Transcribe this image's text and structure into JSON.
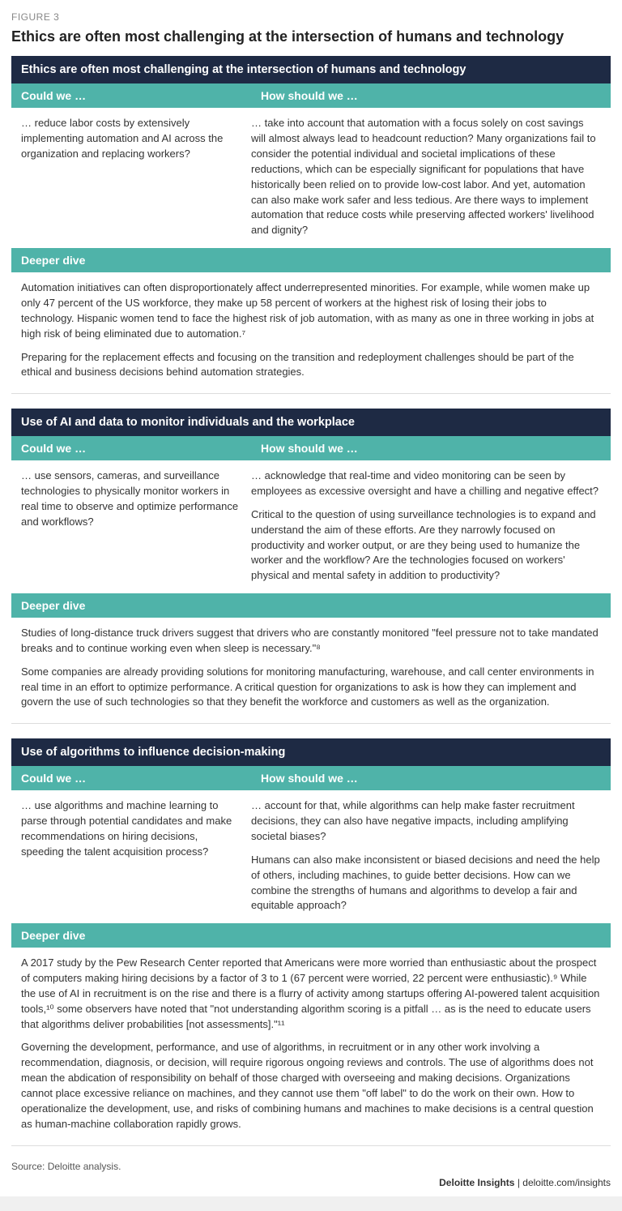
{
  "colors": {
    "dark_header_bg": "#1e2a44",
    "teal_bg": "#4fb3a9",
    "text": "#333333",
    "muted": "#888888",
    "divider": "#dddddd",
    "page_bg": "#ffffff"
  },
  "figure_label": "FIGURE 3",
  "main_title": "Ethics are often most challenging at the intersection of humans and technology",
  "column_headers": {
    "left": "Could we …",
    "right": "How should we …"
  },
  "deeper_dive_label": "Deeper dive",
  "sections": [
    {
      "header": "Ethics are often most challenging at the intersection of humans and technology",
      "could": "… reduce labor costs by extensively implementing automation and AI across the organization and replacing workers?",
      "should": [
        "… take into account that automation with a focus solely on cost savings will almost always lead to headcount reduction? Many organizations fail to consider the potential individual and societal implications of these reductions, which can be especially significant for populations that have historically been relied on to provide low-cost labor. And yet, automation can also make work safer and less tedious. Are there ways to implement automation that reduce costs while preserving affected workers' livelihood and dignity?"
      ],
      "dive": [
        "Automation initiatives can often disproportionately affect underrepresented minorities. For example, while women make up only 47 percent of the US workforce, they make up 58 percent of workers at the highest risk of losing their jobs to technology. Hispanic women tend to face the highest risk of job automation, with as many as one in three working in jobs at high risk of being eliminated due to automation.⁷",
        "Preparing for the replacement effects and focusing on the transition and redeployment challenges should be part of the ethical and business decisions behind automation strategies."
      ]
    },
    {
      "header": "Use of AI and data to monitor individuals and the workplace",
      "could": "… use sensors, cameras, and surveillance technologies to physically monitor workers in real time to observe and optimize performance and workflows?",
      "should": [
        "… acknowledge that real-time and video monitoring can be seen by employees as excessive oversight and have a chilling and negative effect?",
        "Critical to the question of using surveillance technologies is to expand and understand the aim of these efforts. Are they narrowly focused on productivity and worker output, or are they being used to humanize the worker and the workflow? Are the technologies focused on workers' physical and mental safety in addition to productivity?"
      ],
      "dive": [
        "Studies of long-distance truck drivers suggest that drivers who are constantly monitored \"feel pressure not to take mandated breaks and to continue working even when sleep is necessary.\"⁸",
        "Some companies are already providing solutions for monitoring manufacturing, warehouse, and call center environments in real time in an effort to optimize performance. A critical question for organizations to ask is how they can implement and govern the use of such technologies so that they benefit the workforce and customers as well as the organization."
      ]
    },
    {
      "header": "Use of algorithms to influence decision-making",
      "could": "… use algorithms and machine learning to parse through potential candidates and make recommendations on hiring decisions, speeding the talent acquisition process?",
      "should": [
        "… account for that, while algorithms can help make faster recruitment decisions, they can also have negative impacts, including amplifying societal biases?",
        "Humans can also make inconsistent or biased decisions and need the help of others, including machines, to guide better decisions. How can we combine the strengths of humans and algorithms to develop a fair and equitable approach?"
      ],
      "dive": [
        "A 2017 study by the Pew Research Center reported that Americans were more worried than enthusiastic about the prospect of computers making hiring decisions by a factor of 3 to 1 (67 percent were worried, 22 percent were enthusiastic).⁹ While the use of AI in recruitment is on the rise and there is a flurry of activity among startups offering AI-powered talent acquisition tools,¹⁰ some observers have noted that \"not understanding algorithm scoring is a pitfall … as is the need to educate users that algorithms deliver probabilities [not assessments].\"¹¹",
        "Governing the development, performance, and use of algorithms, in recruitment or in any other work involving a recommendation, diagnosis, or decision, will require rigorous ongoing reviews and controls. The use of algorithms does not mean the abdication of responsibility on behalf of those charged with overseeing and making decisions. Organizations cannot place excessive reliance on machines, and they cannot use them \"off label\" to do the work on their own. How to operationalize the development, use, and risks of combining humans and machines to make decisions is a central question as human-machine collaboration rapidly grows."
      ]
    }
  ],
  "source": "Source: Deloitte analysis.",
  "brand_bold": "Deloitte Insights",
  "brand_rest": " | deloitte.com/insights"
}
